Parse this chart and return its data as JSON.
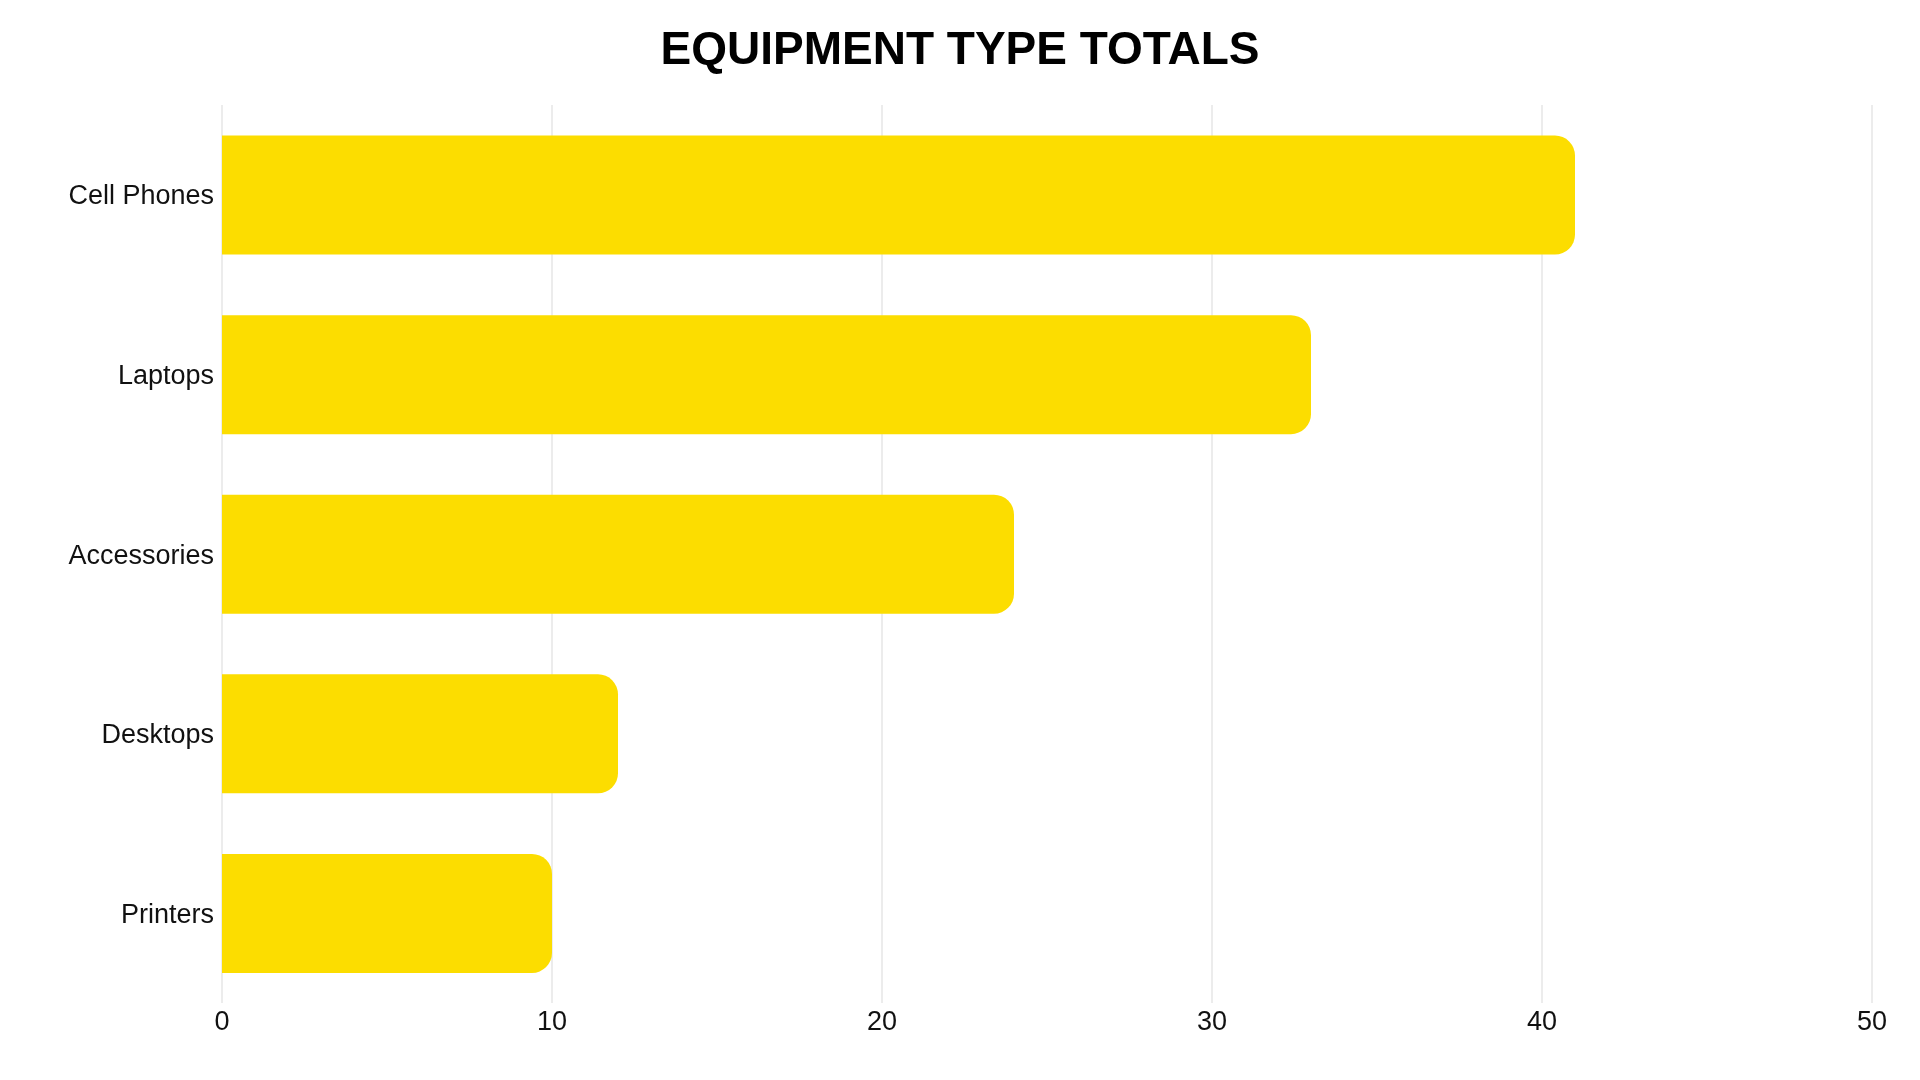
{
  "chart_data": {
    "type": "bar",
    "orientation": "horizontal",
    "title": "EQUIPMENT TYPE TOTALS",
    "categories": [
      "Cell Phones",
      "Laptops",
      "Accessories",
      "Desktops",
      "Printers"
    ],
    "values": [
      41,
      33,
      24,
      12,
      10
    ],
    "color": "#fcdd00",
    "xlim": [
      0,
      50
    ],
    "xticks": [
      0,
      10,
      20,
      30,
      40,
      50
    ],
    "grid": "x"
  }
}
